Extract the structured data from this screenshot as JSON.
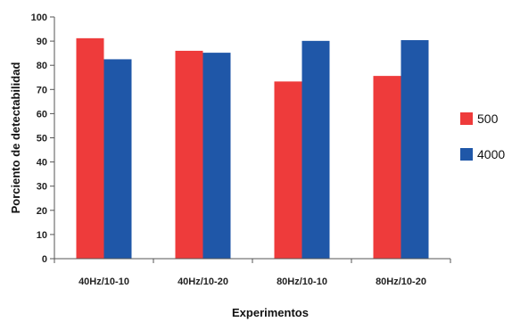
{
  "chart_data": {
    "type": "bar",
    "title": "",
    "xlabel": "Experimentos",
    "ylabel": "Porciento de detectabilidad",
    "categories": [
      "40Hz/10-10",
      "40Hz/10-20",
      "80Hz/10-10",
      "80Hz/10-20"
    ],
    "series": [
      {
        "name": "500",
        "values": [
          91.2,
          86.0,
          73.3,
          75.6
        ],
        "color": "#ee3b3b"
      },
      {
        "name": "4000",
        "values": [
          82.5,
          85.2,
          90.1,
          90.4
        ],
        "color": "#1f57a8"
      }
    ],
    "ylim": [
      0,
      100
    ],
    "yticks": [
      0,
      10,
      20,
      30,
      40,
      50,
      60,
      70,
      80,
      90,
      100
    ],
    "grid": false,
    "legend_position": "right"
  }
}
